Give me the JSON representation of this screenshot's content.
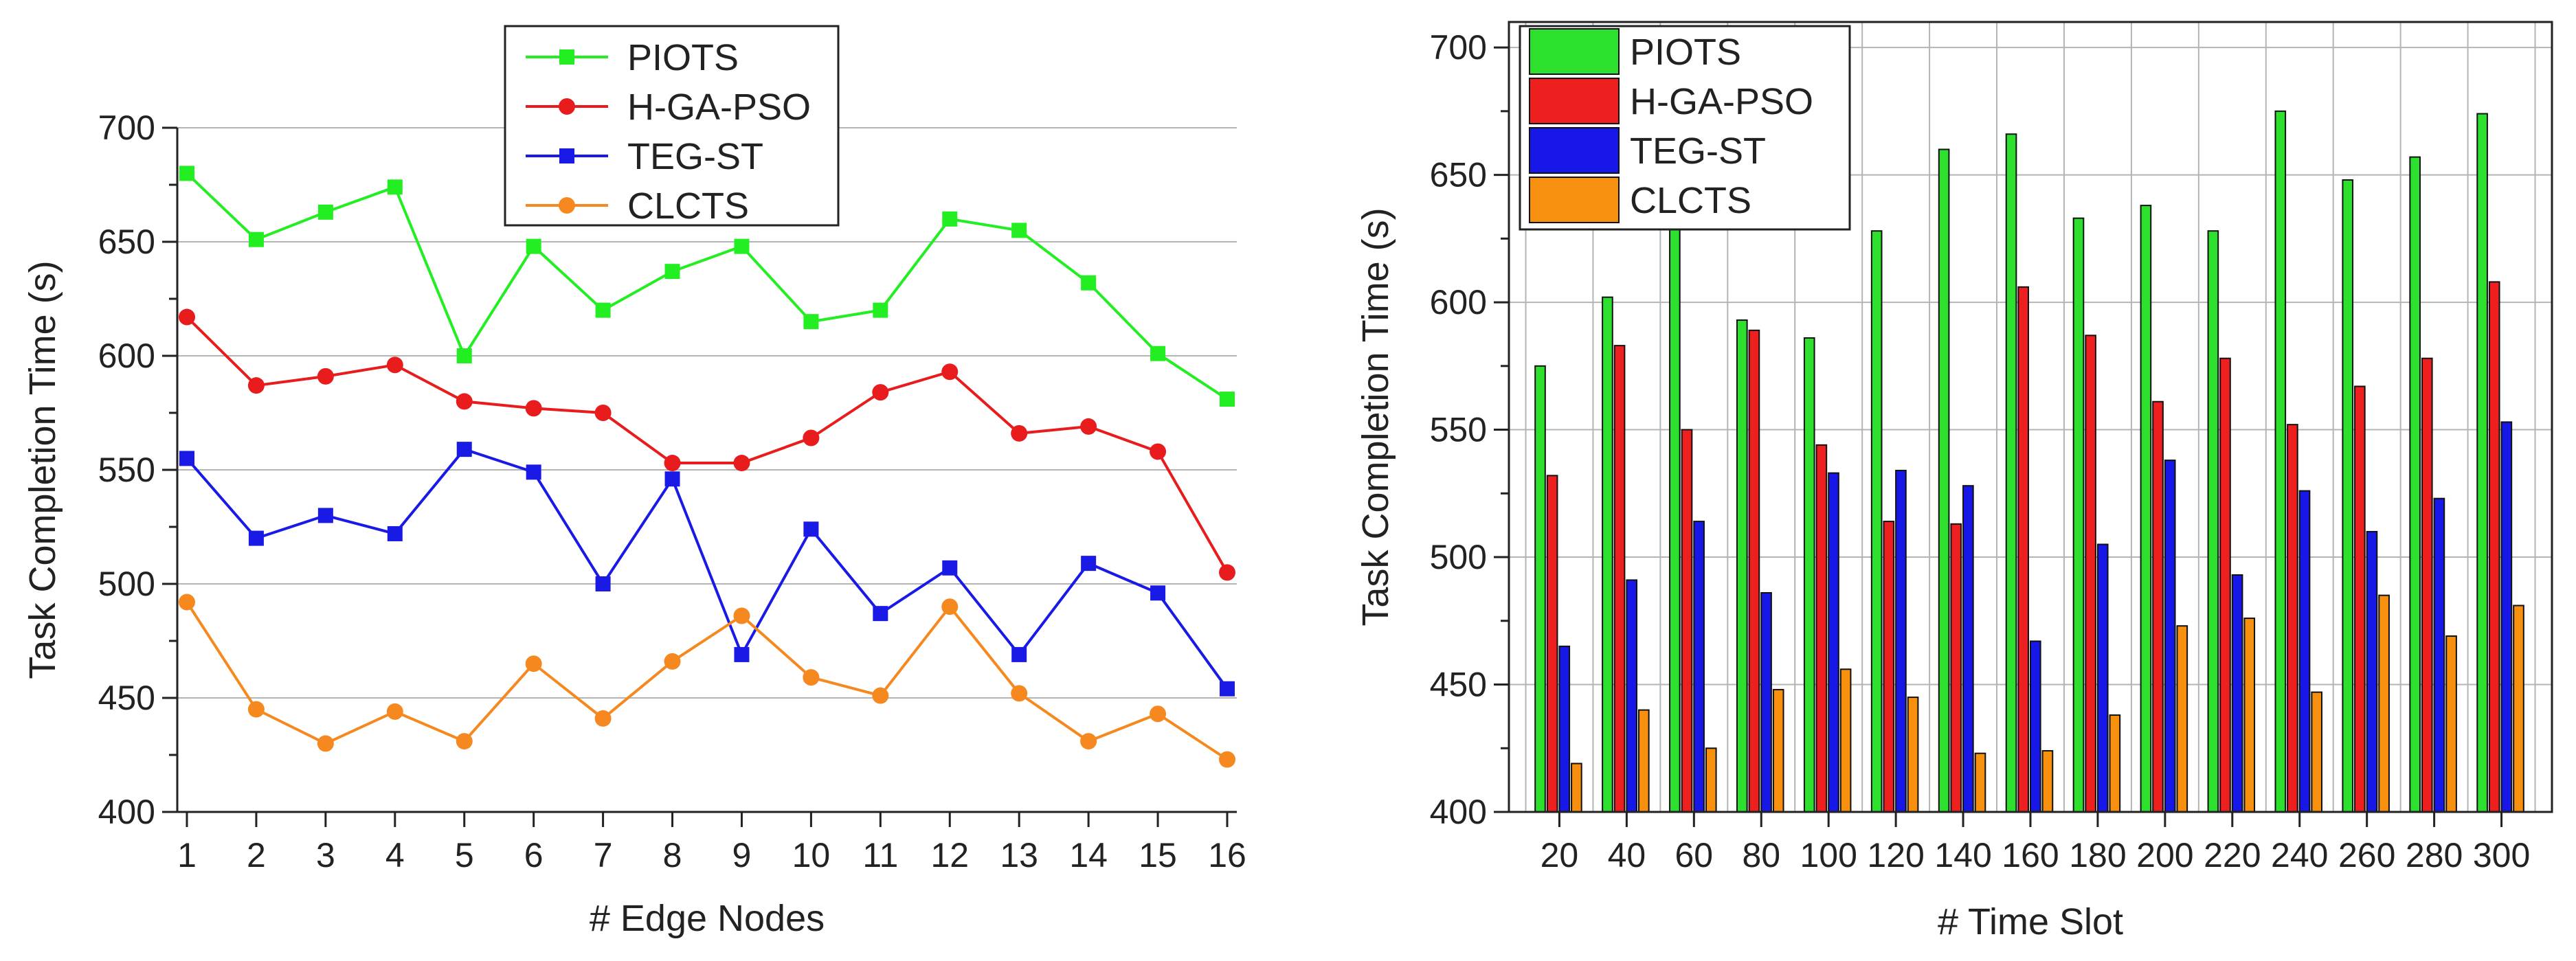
{
  "chart_data": [
    {
      "type": "line",
      "title": "",
      "xlabel": "# Edge Nodes",
      "ylabel": "Task Completion Time (s)",
      "ylim": [
        400,
        700
      ],
      "yticks": [
        400,
        450,
        500,
        550,
        600,
        650,
        700
      ],
      "x": [
        1,
        2,
        3,
        4,
        5,
        6,
        7,
        8,
        9,
        10,
        11,
        12,
        13,
        14,
        15,
        16
      ],
      "x_tick_labels": [
        "1",
        "2",
        "3",
        "4",
        "5",
        "6",
        "7",
        "8",
        "9",
        "10",
        "11",
        "12",
        "13",
        "14",
        "15",
        "16"
      ],
      "grid": "horizontal",
      "legend_position": "top-center",
      "series": [
        {
          "name": "PIOTS",
          "color": "#22ee22",
          "marker": "square",
          "values": [
            680,
            651,
            663,
            674,
            600,
            648,
            620,
            637,
            648,
            615,
            620,
            660,
            655,
            632,
            601,
            581
          ]
        },
        {
          "name": "H-GA-PSO",
          "color": "#e81c1c",
          "marker": "circle",
          "values": [
            617,
            587,
            591,
            596,
            580,
            577,
            575,
            553,
            553,
            564,
            584,
            593,
            566,
            569,
            558,
            505
          ]
        },
        {
          "name": "TEG-ST",
          "color": "#1a1ae6",
          "marker": "square",
          "values": [
            555,
            520,
            530,
            522,
            559,
            549,
            500,
            546,
            469,
            524,
            487,
            507,
            469,
            509,
            496,
            454
          ]
        },
        {
          "name": "CLCTS",
          "color": "#f5891f",
          "marker": "circle",
          "values": [
            492,
            445,
            430,
            444,
            431,
            465,
            441,
            466,
            486,
            459,
            451,
            490,
            452,
            431,
            443,
            423
          ]
        }
      ]
    },
    {
      "type": "bar",
      "title": "",
      "xlabel": "# Time Slot",
      "ylabel": "Task Completion Time (s)",
      "ylim": [
        400,
        710
      ],
      "yticks": [
        400,
        450,
        500,
        550,
        600,
        650,
        700
      ],
      "categories": [
        "20",
        "40",
        "60",
        "80",
        "100",
        "120",
        "140",
        "160",
        "180",
        "200",
        "220",
        "240",
        "260",
        "280",
        "300"
      ],
      "grid": "both",
      "legend_position": "top-left",
      "series": [
        {
          "name": "PIOTS",
          "color": "#2ee02e",
          "values": [
            575,
            602,
            632,
            593,
            586,
            628,
            660,
            666,
            633,
            638,
            628,
            675,
            648,
            657,
            674
          ]
        },
        {
          "name": "H-GA-PSO",
          "color": "#ee1f1f",
          "values": [
            532,
            583,
            550,
            589,
            544,
            514,
            513,
            606,
            587,
            561,
            578,
            552,
            567,
            578,
            608
          ]
        },
        {
          "name": "TEG-ST",
          "color": "#1717e8",
          "values": [
            465,
            491,
            514,
            486,
            533,
            534,
            528,
            467,
            505,
            538,
            493,
            526,
            510,
            523,
            553
          ]
        },
        {
          "name": "CLCTS",
          "color": "#f8900f",
          "values": [
            419,
            440,
            425,
            448,
            456,
            445,
            423,
            424,
            438,
            473,
            476,
            447,
            485,
            469,
            481
          ]
        }
      ]
    }
  ]
}
